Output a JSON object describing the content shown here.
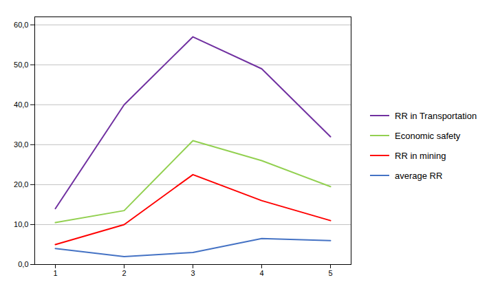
{
  "chart_data": {
    "type": "line",
    "x": [
      1,
      2,
      3,
      4,
      5
    ],
    "series": [
      {
        "name": "RR in Transportation",
        "color": "#7030A0",
        "values": [
          14,
          40,
          57,
          49,
          32
        ]
      },
      {
        "name": "Economic safety",
        "color": "#92D050",
        "values": [
          10.5,
          13.5,
          31,
          26,
          19.5
        ]
      },
      {
        "name": "RR in mining",
        "color": "#FF0000",
        "values": [
          5,
          10,
          22.5,
          16,
          11
        ]
      },
      {
        "name": "average RR",
        "color": "#4472C4",
        "values": [
          4,
          2,
          3,
          6.5,
          6
        ]
      }
    ],
    "xlim": [
      0.7,
      5.3
    ],
    "xticks": [
      1,
      2,
      3,
      4,
      5
    ],
    "ylim": [
      0,
      62
    ],
    "yticks": [
      {
        "value": 0,
        "label": "0,0"
      },
      {
        "value": 10,
        "label": "10,0"
      },
      {
        "value": 20,
        "label": "20,0"
      },
      {
        "value": 30,
        "label": "30,0"
      },
      {
        "value": 40,
        "label": "40,0"
      },
      {
        "value": 50,
        "label": "50,0"
      },
      {
        "value": 60,
        "label": "60,0"
      }
    ],
    "grid": "y",
    "legend": "right"
  }
}
